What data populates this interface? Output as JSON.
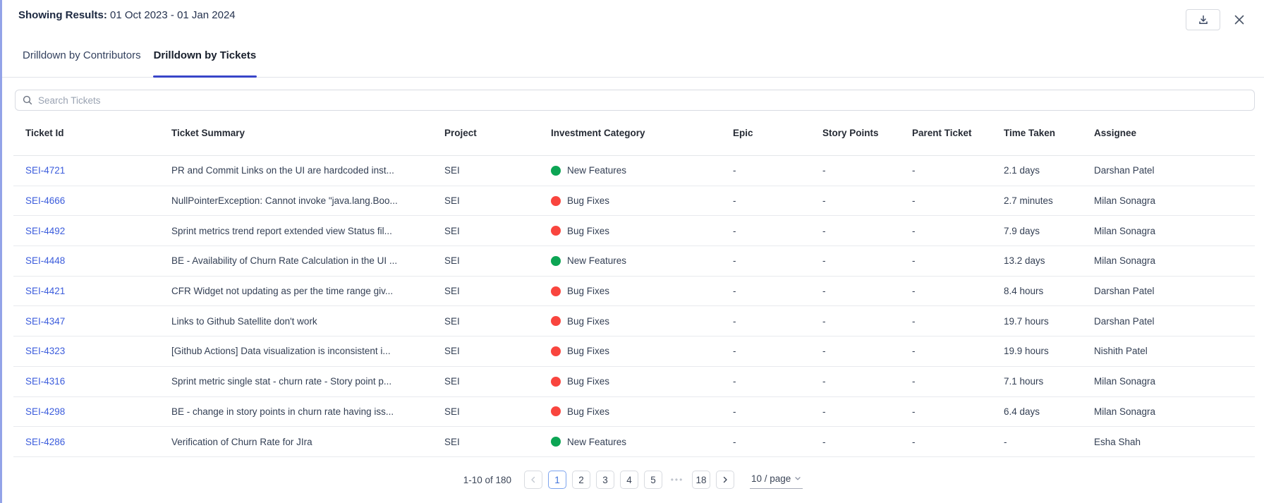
{
  "header": {
    "label": "Showing Results:",
    "date_range": "01 Oct 2023 - 01 Jan 2024"
  },
  "tabs": [
    {
      "label": "Drilldown by Contributors",
      "active": false
    },
    {
      "label": "Drilldown by Tickets",
      "active": true
    }
  ],
  "search": {
    "placeholder": "Search Tickets"
  },
  "table": {
    "columns": [
      "Ticket Id",
      "Ticket Summary",
      "Project",
      "Investment Category",
      "Epic",
      "Story Points",
      "Parent Ticket",
      "Time Taken",
      "Assignee"
    ],
    "rows": [
      {
        "ticket_id": "SEI-4721",
        "summary": "PR and Commit Links on the UI are hardcoded inst...",
        "project": "SEI",
        "category": "New Features",
        "epic": "-",
        "story_points": "-",
        "parent_ticket": "-",
        "time_taken": "2.1 days",
        "assignee": "Darshan Patel"
      },
      {
        "ticket_id": "SEI-4666",
        "summary": "NullPointerException: Cannot invoke \"java.lang.Boo...",
        "project": "SEI",
        "category": "Bug Fixes",
        "epic": "-",
        "story_points": "-",
        "parent_ticket": "-",
        "time_taken": "2.7 minutes",
        "assignee": "Milan Sonagra"
      },
      {
        "ticket_id": "SEI-4492",
        "summary": "Sprint metrics trend report extended view Status fil...",
        "project": "SEI",
        "category": "Bug Fixes",
        "epic": "-",
        "story_points": "-",
        "parent_ticket": "-",
        "time_taken": "7.9 days",
        "assignee": "Milan Sonagra"
      },
      {
        "ticket_id": "SEI-4448",
        "summary": "BE - Availability of Churn Rate Calculation in the UI ...",
        "project": "SEI",
        "category": "New Features",
        "epic": "-",
        "story_points": "-",
        "parent_ticket": "-",
        "time_taken": "13.2 days",
        "assignee": "Milan Sonagra"
      },
      {
        "ticket_id": "SEI-4421",
        "summary": "CFR Widget not updating as per the time range giv...",
        "project": "SEI",
        "category": "Bug Fixes",
        "epic": "-",
        "story_points": "-",
        "parent_ticket": "-",
        "time_taken": "8.4 hours",
        "assignee": "Darshan Patel"
      },
      {
        "ticket_id": "SEI-4347",
        "summary": "Links to Github Satellite don't work",
        "project": "SEI",
        "category": "Bug Fixes",
        "epic": "-",
        "story_points": "-",
        "parent_ticket": "-",
        "time_taken": "19.7 hours",
        "assignee": "Darshan Patel"
      },
      {
        "ticket_id": "SEI-4323",
        "summary": "[Github Actions] Data visualization is inconsistent i...",
        "project": "SEI",
        "category": "Bug Fixes",
        "epic": "-",
        "story_points": "-",
        "parent_ticket": "-",
        "time_taken": "19.9 hours",
        "assignee": "Nishith Patel"
      },
      {
        "ticket_id": "SEI-4316",
        "summary": "Sprint metric single stat - churn rate - Story point p...",
        "project": "SEI",
        "category": "Bug Fixes",
        "epic": "-",
        "story_points": "-",
        "parent_ticket": "-",
        "time_taken": "7.1 hours",
        "assignee": "Milan Sonagra"
      },
      {
        "ticket_id": "SEI-4298",
        "summary": "BE - change in story points in churn rate having iss...",
        "project": "SEI",
        "category": "Bug Fixes",
        "epic": "-",
        "story_points": "-",
        "parent_ticket": "-",
        "time_taken": "6.4 days",
        "assignee": "Milan Sonagra"
      },
      {
        "ticket_id": "SEI-4286",
        "summary": "Verification of Churn Rate for JIra",
        "project": "SEI",
        "category": "New Features",
        "epic": "-",
        "story_points": "-",
        "parent_ticket": "-",
        "time_taken": "-",
        "assignee": "Esha Shah"
      }
    ]
  },
  "pagination": {
    "range_text": "1-10 of 180",
    "pages": [
      "1",
      "2",
      "3",
      "4",
      "5",
      "ellipsis",
      "18"
    ],
    "active_page": "1",
    "ellipsis_glyph": "•••",
    "page_size_label": "10 / page"
  },
  "icons": {
    "download": "download-icon",
    "close": "close-icon",
    "search": "search-icon",
    "prev": "chevron-left-icon",
    "next": "chevron-right-icon",
    "page_size": "chevron-down-icon",
    "category_dot": "category-dot-icon"
  },
  "colors": {
    "left_border": "#93a3e8",
    "tab_underline": "#3945c8",
    "link": "#3b5cdc",
    "active_page_border": "#7da4ee",
    "category": {
      "New Features": "#0ca554",
      "Bug Fixes": "#f9453e"
    }
  }
}
